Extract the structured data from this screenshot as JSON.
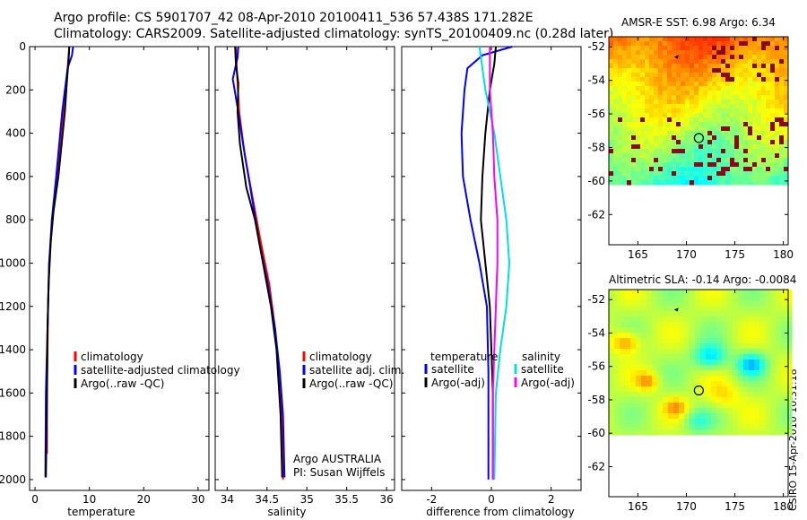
{
  "header": {
    "line1": "Argo profile: CS 5901707_42 08-Apr-2010 20100411_536 57.438S 171.282E",
    "line2": "Climatology: CARS2009. Satellite-adjusted climatology: synTS_20100409.nc (0.28d later)"
  },
  "stamp": "CSIRO 15-Apr-2010 10:31:18",
  "chart_data": [
    {
      "type": "line",
      "xlabel": "temperature",
      "ylim": [
        0,
        2050
      ],
      "y_reversed": true,
      "xlim": [
        -1,
        32
      ],
      "xticks": [
        0,
        10,
        20,
        30
      ],
      "yticks": [
        0,
        200,
        400,
        600,
        800,
        1000,
        1200,
        1400,
        1600,
        1800,
        2000
      ],
      "legend": [
        "climatology",
        "satellite-adjusted climatology",
        "Argo(..raw -QC)"
      ],
      "series": [
        {
          "name": "climatology",
          "color": "#ff0000",
          "x": [
            6.3,
            6.0,
            5.7,
            4.9,
            4.0,
            3.2,
            2.6,
            2.4,
            2.3,
            2.2,
            2.2
          ],
          "y": [
            0,
            100,
            200,
            400,
            600,
            800,
            1000,
            1200,
            1400,
            1600,
            1880
          ]
        },
        {
          "name": "satellite-adjusted climatology",
          "color": "#0000ff",
          "x": [
            7.0,
            6.8,
            6.0,
            5.0,
            3.9,
            3.1,
            2.6,
            2.4,
            2.2,
            2.0,
            1.9
          ],
          "y": [
            0,
            40,
            100,
            300,
            600,
            800,
            1000,
            1200,
            1400,
            1600,
            1990
          ]
        },
        {
          "name": "Argo(..raw -QC)",
          "color": "#000000",
          "x": [
            6.3,
            6.2,
            5.9,
            5.5,
            4.3,
            3.4,
            2.9,
            2.5,
            2.3,
            2.2,
            2.1,
            2.0
          ],
          "y": [
            0,
            60,
            150,
            300,
            600,
            760,
            900,
            1100,
            1300,
            1600,
            1800,
            1990
          ]
        }
      ]
    },
    {
      "type": "line",
      "xlabel": "salinity",
      "ylim": [
        0,
        2050
      ],
      "y_reversed": true,
      "xlim": [
        33.85,
        36.1
      ],
      "xticks": [
        34,
        34.5,
        35,
        35.5,
        36
      ],
      "legend": [
        "climatology",
        "satellite adj. clim.",
        "Argo(..raw -QC)"
      ],
      "annotations": [
        "Argo AUSTRALIA",
        "PI: Susan Wijffels"
      ],
      "series": [
        {
          "name": "climatology",
          "color": "#ff0000",
          "x": [
            34.11,
            34.12,
            34.15,
            34.22,
            34.32,
            34.42,
            34.53,
            34.6,
            34.65,
            34.68,
            34.7,
            34.7
          ],
          "y": [
            0,
            100,
            300,
            500,
            700,
            900,
            1100,
            1300,
            1500,
            1700,
            1900,
            2000
          ]
        },
        {
          "name": "satellite adj. clim.",
          "color": "#0000ff",
          "x": [
            34.14,
            34.13,
            34.07,
            34.13,
            34.2,
            34.29,
            34.4,
            34.51,
            34.6,
            34.66,
            34.7,
            34.72
          ],
          "y": [
            0,
            50,
            150,
            280,
            450,
            650,
            900,
            1100,
            1300,
            1500,
            1700,
            1990
          ]
        },
        {
          "name": "Argo(..raw -QC)",
          "color": "#000000",
          "x": [
            34.1,
            34.11,
            34.14,
            34.13,
            34.16,
            34.24,
            34.35,
            34.45,
            34.55,
            34.62,
            34.67,
            34.69
          ],
          "y": [
            0,
            80,
            170,
            300,
            450,
            650,
            800,
            1000,
            1200,
            1400,
            1700,
            1990
          ]
        }
      ]
    },
    {
      "type": "line",
      "xlabel": "difference from climatology",
      "ylim": [
        0,
        2050
      ],
      "y_reversed": true,
      "xlim": [
        -3,
        3
      ],
      "xticks": [
        -2,
        0,
        2
      ],
      "legend": [
        "temperature",
        "satellite",
        "Argo(-adj)",
        "salinity",
        "satellite",
        "Argo(-adj)"
      ],
      "series": [
        {
          "name": "satellite",
          "color": "#0000ff",
          "x": [
            0.7,
            -0.3,
            -0.8,
            -0.9,
            -1.0,
            -0.95,
            -0.7,
            -0.4,
            -0.15,
            -0.1,
            -0.1
          ],
          "y": [
            0,
            40,
            100,
            200,
            400,
            600,
            800,
            1000,
            1200,
            1500,
            2000
          ]
        },
        {
          "name": "Argo(-adj)",
          "color": "#000000",
          "x": [
            0.15,
            0.1,
            -0.05,
            -0.2,
            -0.3,
            -0.35,
            -0.2,
            -0.05,
            0.0,
            0.05,
            0.05
          ],
          "y": [
            0,
            80,
            200,
            400,
            600,
            800,
            1000,
            1200,
            1400,
            1600,
            2000
          ]
        },
        {
          "name": "satellite",
          "color": "#00e0e0",
          "x": [
            -0.4,
            -0.3,
            -0.2,
            0.1,
            0.3,
            0.5,
            0.6,
            0.5,
            0.3,
            0.15,
            0.1
          ],
          "y": [
            0,
            100,
            200,
            400,
            600,
            800,
            1000,
            1200,
            1400,
            1600,
            2000
          ]
        },
        {
          "name": "Argo(-adj)",
          "color": "#ff00ff",
          "x": [
            -0.05,
            -0.05,
            -0.05,
            0.05,
            0.1,
            0.2,
            0.2,
            0.15,
            0.1,
            0.05,
            0.05
          ],
          "y": [
            0,
            100,
            200,
            400,
            600,
            800,
            1000,
            1200,
            1400,
            1600,
            2000
          ]
        }
      ]
    },
    {
      "type": "heatmap",
      "title": "AMSR-E SST: 6.98 Argo: 6.34",
      "xlim": [
        162,
        180.5
      ],
      "ylim": [
        -63.8,
        -51.4
      ],
      "xticks": [
        165,
        170,
        175,
        180
      ],
      "yticks": [
        -52,
        -54,
        -56,
        -58,
        -60,
        -62
      ],
      "data_extent_lat": [
        -60,
        -51.4
      ],
      "marker": {
        "lon": 171.282,
        "lat": -57.438
      },
      "arrow": {
        "lon": 169,
        "lat": -52.6
      }
    },
    {
      "type": "heatmap",
      "title": "Altimetric SLA: -0.14 Argo: -0.0084",
      "xlim": [
        162,
        180.5
      ],
      "ylim": [
        -63.8,
        -51.4
      ],
      "xticks": [
        165,
        170,
        175,
        180
      ],
      "yticks": [
        -52,
        -54,
        -56,
        -58,
        -60,
        -62
      ],
      "data_extent_lat": [
        -60,
        -51.4
      ],
      "marker": {
        "lon": 171.282,
        "lat": -57.438
      },
      "arrow": {
        "lon": 169,
        "lat": -52.6
      }
    }
  ]
}
